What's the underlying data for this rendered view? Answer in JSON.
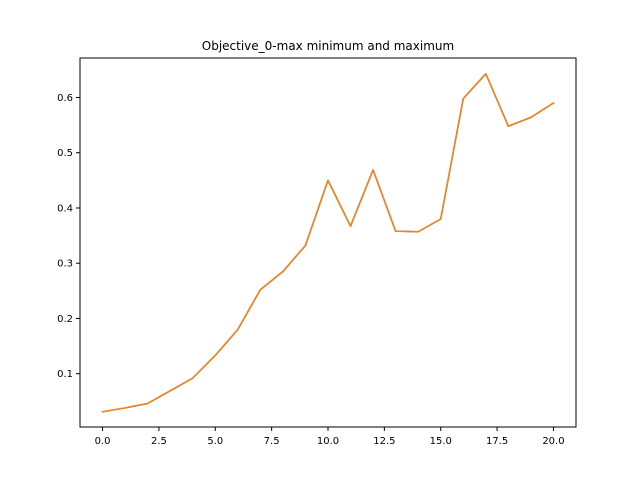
{
  "chart_data": {
    "type": "line",
    "title": "Objective_0-max minimum and maximum",
    "xlabel": "",
    "ylabel": "",
    "xlim": [
      -1.0,
      21.0
    ],
    "ylim": [
      0.0035,
      0.6715
    ],
    "x_ticks": [
      0.0,
      2.5,
      5.0,
      7.5,
      10.0,
      12.5,
      15.0,
      17.5,
      20.0
    ],
    "x_tick_labels": [
      "0.0",
      "2.5",
      "5.0",
      "7.5",
      "10.0",
      "12.5",
      "15.0",
      "17.5",
      "20.0"
    ],
    "y_ticks": [
      0.1,
      0.2,
      0.3,
      0.4,
      0.5,
      0.6
    ],
    "y_tick_labels": [
      "0.1",
      "0.2",
      "0.3",
      "0.4",
      "0.5",
      "0.6"
    ],
    "grid": false,
    "x": [
      0,
      1,
      2,
      3,
      4,
      5,
      6,
      7,
      8,
      9,
      10,
      11,
      12,
      13,
      14,
      15,
      16,
      17,
      18,
      19,
      20
    ],
    "series": [
      {
        "color": "#1f77b4",
        "values": [
          0.031,
          0.038,
          0.046,
          0.069,
          0.092,
          0.133,
          0.18,
          0.252,
          0.285,
          0.332,
          0.45,
          0.367,
          0.469,
          0.358,
          0.357,
          0.38,
          0.598,
          0.643,
          0.548,
          0.564,
          0.59
        ]
      },
      {
        "color": "#ff7f0e",
        "values": [
          0.031,
          0.038,
          0.046,
          0.069,
          0.092,
          0.133,
          0.18,
          0.252,
          0.285,
          0.332,
          0.45,
          0.367,
          0.469,
          0.358,
          0.357,
          0.38,
          0.598,
          0.643,
          0.548,
          0.564,
          0.59
        ]
      }
    ]
  }
}
